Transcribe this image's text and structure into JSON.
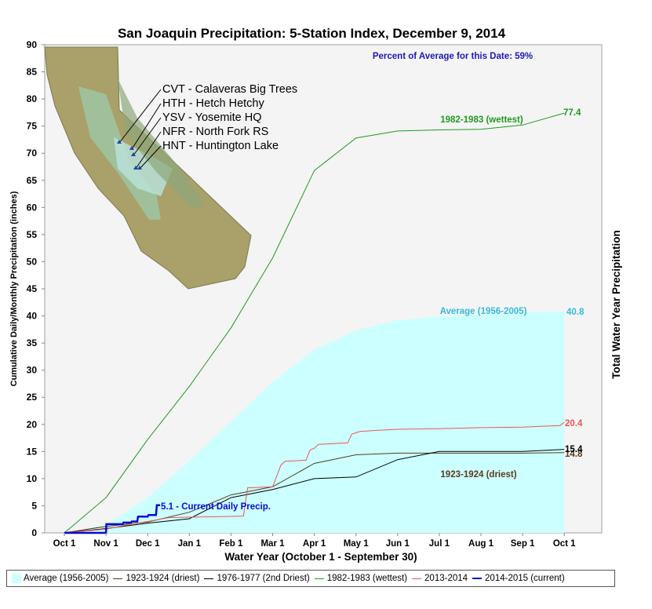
{
  "chart_data": {
    "type": "line",
    "title": "San Joaquin Precipitation: 5-Station Index, December 9, 2014",
    "subtitle": "Percent of Average for this Date: 59%",
    "xlabel": "Water Year (October 1 - September 30)",
    "ylabel": "Cumulative Daily/Monthly Precipitation (inches)",
    "right_label": "Total Water Year Precipitation",
    "ylim": [
      0,
      90
    ],
    "y_ticks": [
      0,
      5,
      10,
      15,
      20,
      25,
      30,
      35,
      40,
      45,
      50,
      55,
      60,
      65,
      70,
      75,
      80,
      85,
      90
    ],
    "x_ticks": [
      "Oct 1",
      "Nov 1",
      "Dec 1",
      "Jan 1",
      "Feb 1",
      "Mar 1",
      "Apr 1",
      "May 1",
      "Jun 1",
      "Jul 1",
      "Aug 1",
      "Sep 1",
      "Oct 1"
    ],
    "grid": false,
    "legend_position": "bottom",
    "stations": [
      "CVT - Calaveras Big Trees",
      "HTH - Hetch Hetchy",
      "YSV - Yosemite HQ",
      "NFR - North Fork RS",
      "HNT - Huntington Lake"
    ],
    "series": [
      {
        "name": "Average (1956-2005)",
        "kind": "area",
        "color": "#ccffff",
        "label_color": "#33bbdd",
        "label": "Average (1956-2005)",
        "end_label": "40.8",
        "x": [
          0,
          1,
          2,
          3,
          4,
          5,
          6,
          7,
          8,
          9,
          10,
          11,
          12
        ],
        "values": [
          0,
          1.5,
          6.5,
          13.3,
          20.5,
          27.8,
          33.8,
          37.3,
          39.2,
          39.9,
          40.3,
          40.6,
          40.8
        ]
      },
      {
        "name": "1923-1924 (driest)",
        "kind": "line",
        "color": "#5a3a1a",
        "label": "1923-1924 (driest)",
        "end_label": "14.8",
        "x": [
          0,
          1,
          2,
          3,
          4,
          5,
          6,
          7,
          8,
          9,
          10,
          11,
          12
        ],
        "values": [
          0,
          1.2,
          2.0,
          3.8,
          7.0,
          8.5,
          12.8,
          14.4,
          14.7,
          14.7,
          14.7,
          14.7,
          14.8
        ]
      },
      {
        "name": "1976-1977 (2nd Driest)",
        "kind": "line",
        "color": "#000000",
        "end_label": "15.4",
        "x": [
          0,
          1,
          2,
          3,
          4,
          5,
          6,
          7,
          8,
          9,
          10,
          11,
          12
        ],
        "values": [
          0,
          0.8,
          1.8,
          2.6,
          6.5,
          8.0,
          10.0,
          10.3,
          13.5,
          15.0,
          15.0,
          15.0,
          15.4
        ]
      },
      {
        "name": "1982-1983 (wettest)",
        "kind": "line",
        "color": "#229922",
        "label": "1982-1983 (wettest)",
        "end_label": "77.4",
        "x": [
          0,
          1,
          2,
          3,
          4,
          5,
          6,
          7,
          8,
          9,
          10,
          11,
          12
        ],
        "values": [
          0,
          6.5,
          17.2,
          27.0,
          37.8,
          50.7,
          66.8,
          72.8,
          74.1,
          74.3,
          74.4,
          75.2,
          77.4
        ]
      },
      {
        "name": "2013-2014",
        "kind": "line",
        "color": "#ee5555",
        "end_label": "20.4",
        "x": [
          0,
          1,
          1.6,
          2.0,
          2.5,
          3.0,
          3.8,
          4.3,
          4.4,
          5.0,
          5.2,
          5.3,
          5.8,
          5.9,
          6.0,
          6.1,
          6.3,
          6.8,
          6.9,
          7.1,
          7.5,
          8.0,
          9.0,
          10.0,
          11.0,
          11.9,
          12.0
        ],
        "values": [
          0,
          0.7,
          1.6,
          2.1,
          2.8,
          2.9,
          3.0,
          3.1,
          8.3,
          8.5,
          12.5,
          13.2,
          13.4,
          15.3,
          15.6,
          16.3,
          16.4,
          16.6,
          18.2,
          18.7,
          18.9,
          19.1,
          19.2,
          19.4,
          19.5,
          19.8,
          20.4
        ]
      },
      {
        "name": "2014-2015 (current)",
        "kind": "line",
        "color": "#0a0ad2",
        "label": "5.1 -  Current Daily Precip.",
        "x": [
          0,
          1.0,
          1.01,
          1.4,
          1.42,
          1.6,
          1.62,
          1.75,
          1.77,
          2.0,
          2.02,
          2.2,
          2.22,
          2.3
        ],
        "values": [
          0,
          0,
          1.6,
          1.6,
          1.9,
          1.9,
          2.1,
          2.1,
          3.0,
          3.0,
          3.3,
          3.3,
          5.1,
          5.1
        ]
      }
    ]
  }
}
